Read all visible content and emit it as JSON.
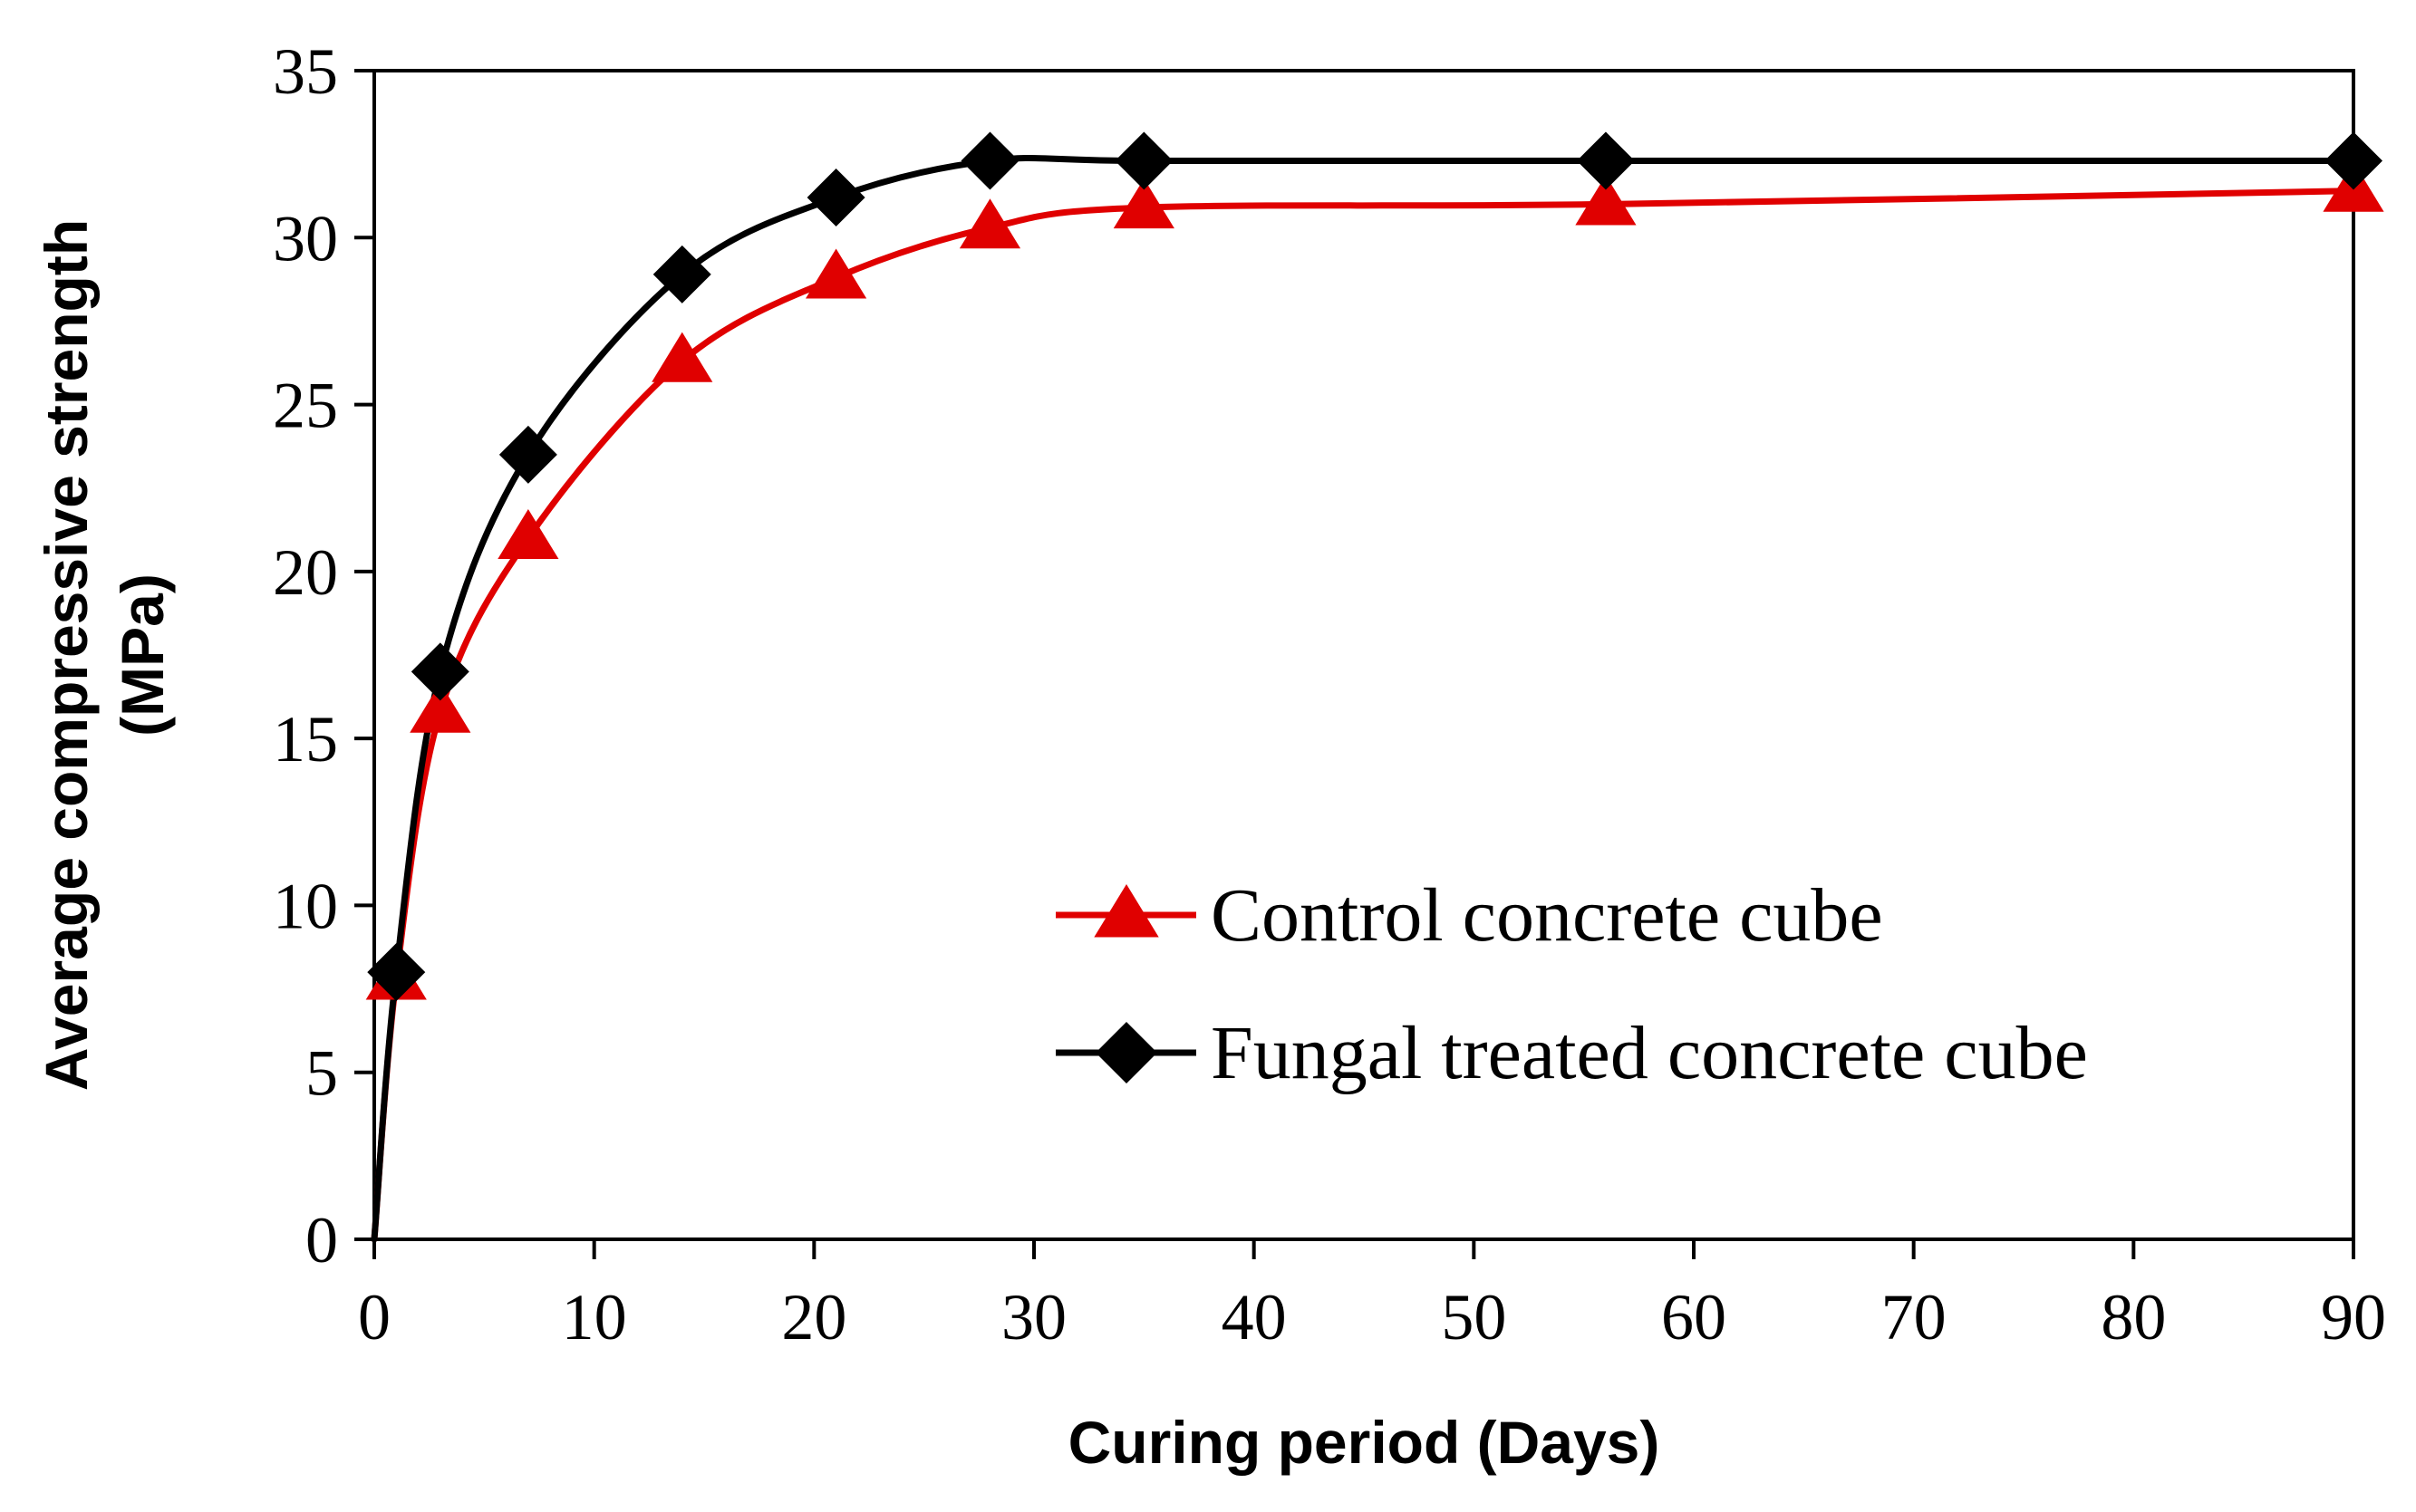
{
  "chart_data": {
    "type": "line",
    "title": "",
    "xlabel": "Curing period (Days)",
    "ylabel_line1": "Average compressive strength",
    "ylabel_line2": "(MPa)",
    "xlim": [
      0,
      90
    ],
    "ylim": [
      0,
      35
    ],
    "xticks": [
      0,
      10,
      20,
      30,
      40,
      50,
      60,
      70,
      80,
      90
    ],
    "yticks": [
      0,
      5,
      10,
      15,
      20,
      25,
      30,
      35
    ],
    "grid": false,
    "legend_position": "center-right",
    "series": [
      {
        "name": "Control concrete cube",
        "color": "#e00000",
        "marker": "triangle",
        "curve_start": [
          0,
          0
        ],
        "x": [
          1,
          3,
          7,
          14,
          21,
          28,
          35,
          56,
          90
        ],
        "y": [
          7.8,
          15.8,
          21.0,
          26.3,
          28.8,
          30.3,
          30.9,
          31.0,
          31.4
        ]
      },
      {
        "name": "Fungal treated concrete cube",
        "color": "#000000",
        "marker": "diamond",
        "curve_start": [
          0,
          0
        ],
        "x": [
          1,
          3,
          7,
          14,
          21,
          28,
          35,
          56,
          90
        ],
        "y": [
          8.0,
          17.0,
          23.5,
          28.9,
          31.2,
          32.3,
          32.3,
          32.3,
          32.3
        ]
      }
    ]
  }
}
